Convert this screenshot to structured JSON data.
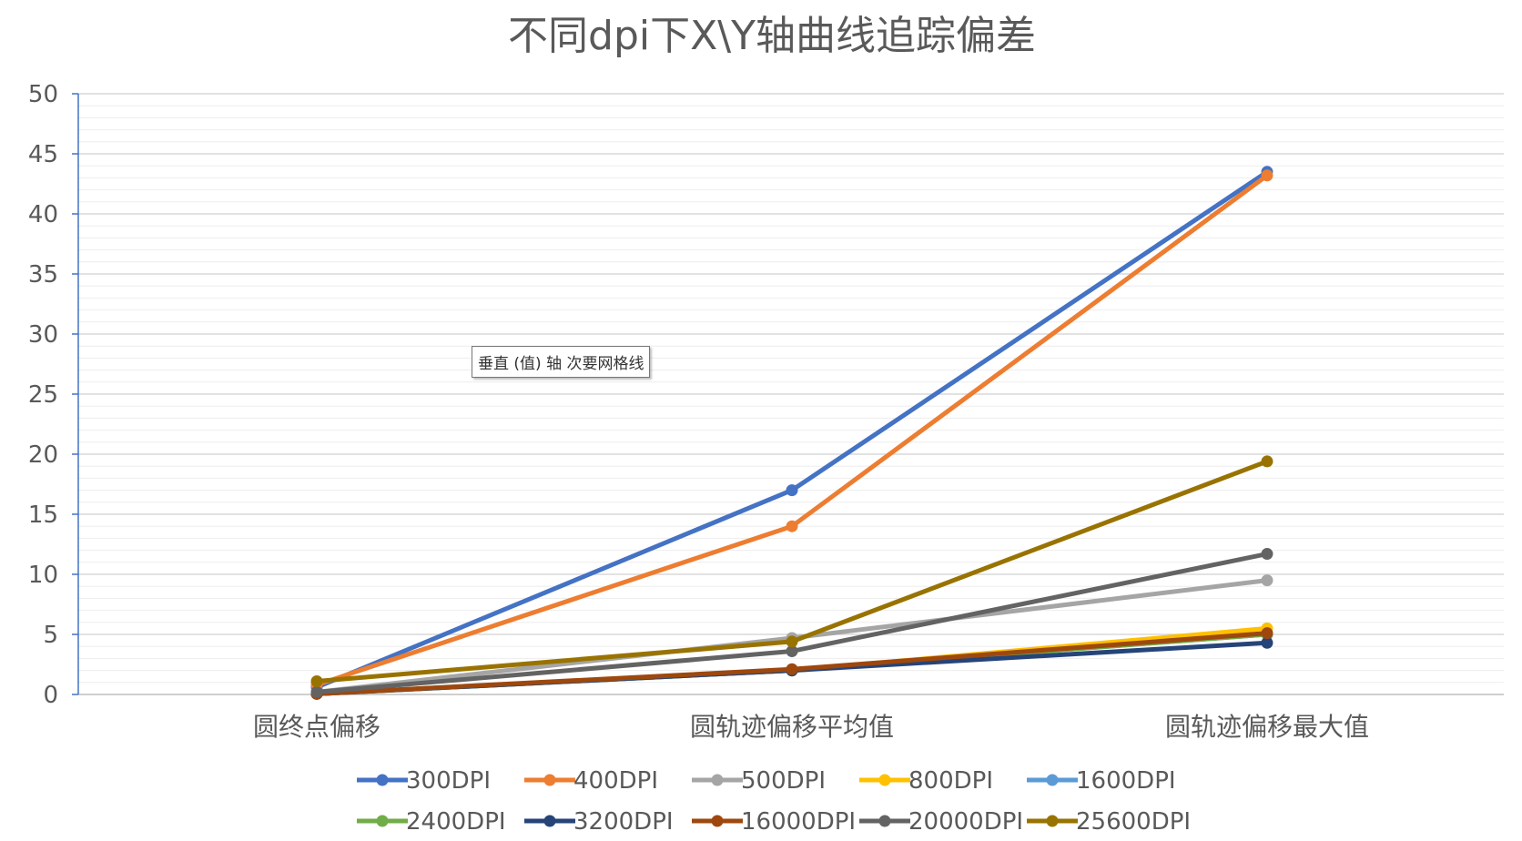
{
  "chart_data": {
    "type": "line",
    "title": "不同dpi下X\\Y轴曲线追踪偏差",
    "categories": [
      "圆终点偏移",
      "圆轨迹偏移平均值",
      "圆轨迹偏移最大值"
    ],
    "ylim": [
      0,
      50
    ],
    "y_ticks": [
      "0",
      "5",
      "10",
      "15",
      "20",
      "25",
      "30",
      "35",
      "40",
      "45",
      "50"
    ],
    "grid": true,
    "legend_position": "bottom",
    "series": [
      {
        "name": "300DPI",
        "color": "#4472C4",
        "values": [
          0.6,
          17.0,
          43.5
        ]
      },
      {
        "name": "400DPI",
        "color": "#ED7D31",
        "values": [
          0.8,
          14.0,
          43.2
        ]
      },
      {
        "name": "500DPI",
        "color": "#A5A5A5",
        "values": [
          0.2,
          4.7,
          9.5
        ]
      },
      {
        "name": "800DPI",
        "color": "#FFC000",
        "values": [
          0.05,
          2.0,
          5.5
        ]
      },
      {
        "name": "1600DPI",
        "color": "#5B9BD5",
        "values": [
          0.05,
          2.0,
          5.0
        ]
      },
      {
        "name": "2400DPI",
        "color": "#70AD47",
        "values": [
          0.05,
          2.0,
          5.0
        ]
      },
      {
        "name": "3200DPI",
        "color": "#264478",
        "values": [
          0.05,
          2.0,
          4.3
        ]
      },
      {
        "name": "16000DPI",
        "color": "#9E480E",
        "values": [
          0.05,
          2.1,
          5.1
        ]
      },
      {
        "name": "20000DPI",
        "color": "#636363",
        "values": [
          0.2,
          3.6,
          11.7
        ]
      },
      {
        "name": "25600DPI",
        "color": "#997300",
        "values": [
          1.1,
          4.4,
          19.4
        ]
      }
    ]
  },
  "tooltip": "垂直 (值) 轴 次要网格线"
}
